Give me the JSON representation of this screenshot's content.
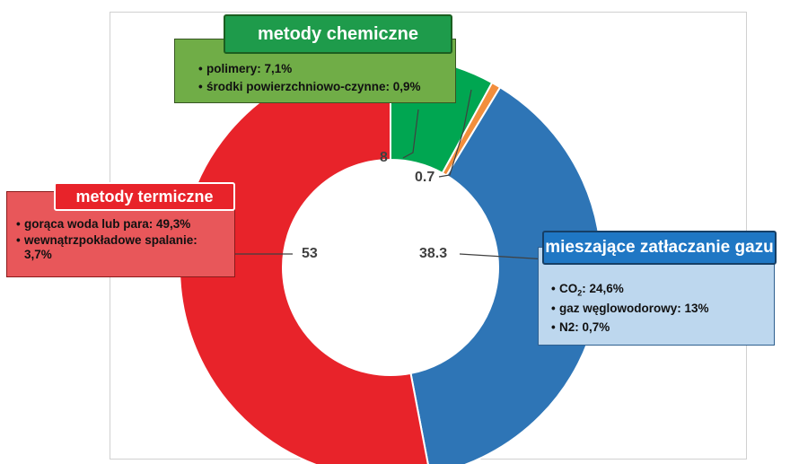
{
  "chart_data": {
    "type": "pie",
    "slices": [
      {
        "label": "metody chemiczne",
        "value": 8,
        "display": "8",
        "color": "#00a651"
      },
      {
        "label": "",
        "value": 0.7,
        "display": "0.7",
        "color": "#f28e3c"
      },
      {
        "label": "mieszające zatłaczanie gazu",
        "value": 38.3,
        "display": "38.3",
        "color": "#2e75b6"
      },
      {
        "label": "metody termiczne",
        "value": 53,
        "display": "53",
        "color": "#e8232a"
      }
    ],
    "donut": true
  },
  "callouts": {
    "chemical": {
      "title": "metody chemiczne",
      "items": [
        "polimery: 7,1%",
        "środki powierzchniowo-czynne: 0,9%"
      ]
    },
    "thermal": {
      "title": "metody termiczne",
      "items": [
        "gorąca woda lub para: 49,3%",
        "wewnątrzpokładowe spalanie: 3,7%"
      ]
    },
    "gas": {
      "title": "mieszające zatłaczanie gazu",
      "item_co2_prefix": "CO",
      "item_co2_sub": "2",
      "item_co2_suffix": ": 24,6%",
      "items": [
        "gaz węglowodorowy: 13%",
        "N2: 0,7%"
      ]
    }
  }
}
